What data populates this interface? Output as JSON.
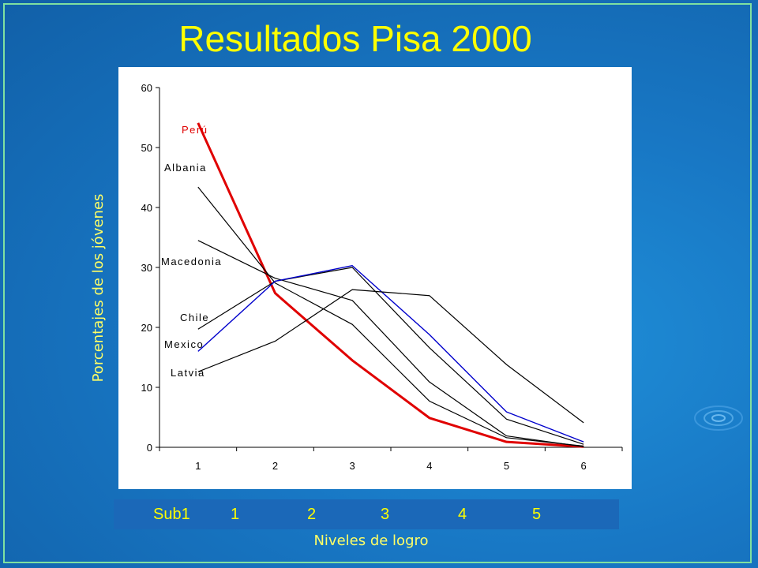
{
  "title": "Resultados Pisa 2000",
  "ylabel": "Porcentajes de los jóvenes",
  "xlabel": "Niveles de logro",
  "legend_bar": [
    "Sub1",
    "1",
    "2",
    "3",
    "4",
    "5"
  ],
  "colors": {
    "background": "#1877c4",
    "title": "#ffff00",
    "peru": "#e00000",
    "mexico": "#0000cc",
    "other": "#000000"
  },
  "chart_data": {
    "type": "line",
    "x": [
      1,
      2,
      3,
      4,
      5,
      6
    ],
    "xlim": [
      0.5,
      6.5
    ],
    "ylim": [
      0,
      60
    ],
    "yticks": [
      0,
      10,
      20,
      30,
      40,
      50,
      60
    ],
    "xticks": [
      1,
      2,
      3,
      4,
      5,
      6
    ],
    "grid": false,
    "series": [
      {
        "name": "Perú",
        "values": [
          54.1,
          25.7,
          14.5,
          4.9,
          0.9,
          0.1
        ],
        "color": "#e00000"
      },
      {
        "name": "Albania",
        "values": [
          43.4,
          27.4,
          20.5,
          7.7,
          1.6,
          0.2
        ],
        "color": "#000000"
      },
      {
        "name": "Macedonia",
        "values": [
          34.5,
          28.2,
          24.5,
          10.9,
          1.9,
          0.1
        ],
        "color": "#000000"
      },
      {
        "name": "Chile",
        "values": [
          19.7,
          27.7,
          30.0,
          16.6,
          4.7,
          0.5
        ],
        "color": "#000000"
      },
      {
        "name": "Mexico",
        "values": [
          16.0,
          27.7,
          30.3,
          18.8,
          5.9,
          0.9
        ],
        "color": "#0000cc"
      },
      {
        "name": "Latvia",
        "values": [
          12.6,
          17.7,
          26.3,
          25.3,
          13.8,
          4.1
        ],
        "color": "#000000"
      }
    ]
  }
}
